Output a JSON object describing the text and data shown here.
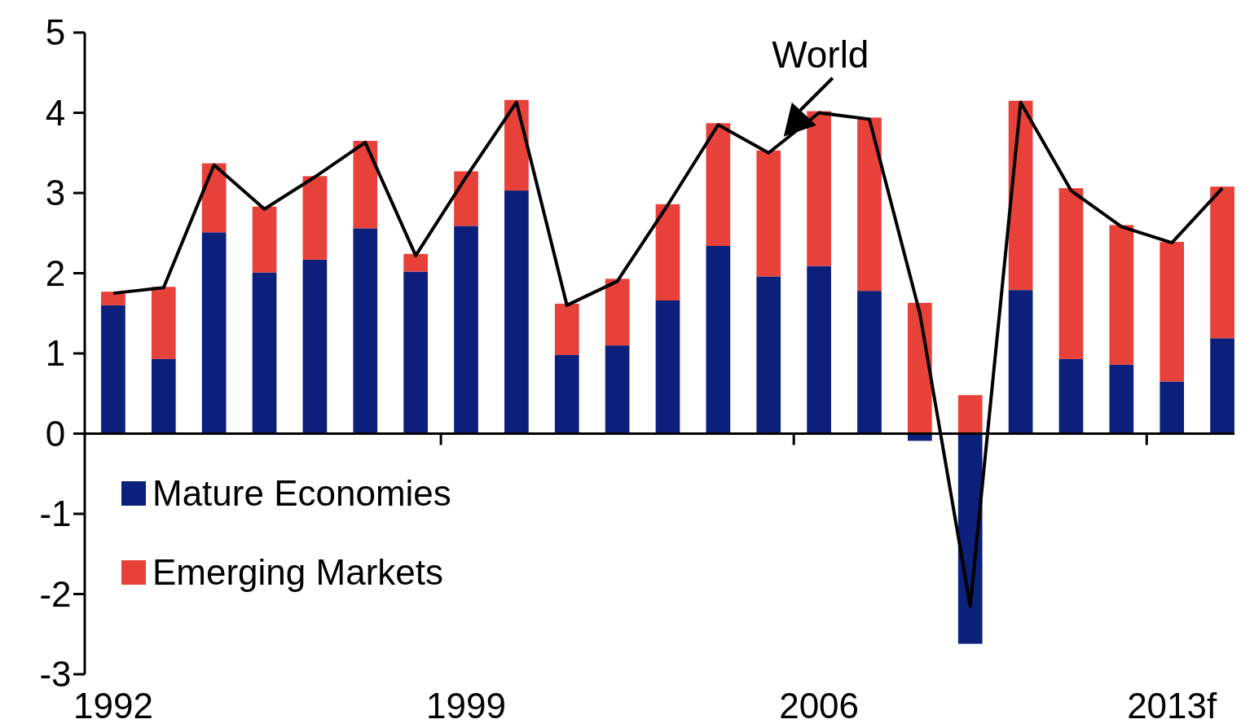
{
  "chart_data": {
    "type": "bar",
    "stacked": true,
    "categories": [
      "1992",
      null,
      null,
      null,
      null,
      null,
      null,
      "1999",
      null,
      null,
      null,
      null,
      null,
      null,
      "2006",
      null,
      null,
      null,
      null,
      null,
      null,
      "2013f",
      null
    ],
    "series": [
      {
        "name": "Mature Economies",
        "color": "#0c1f7a",
        "values": [
          1.6,
          0.93,
          2.51,
          2.01,
          2.17,
          2.56,
          2.02,
          2.59,
          3.03,
          0.98,
          1.1,
          1.66,
          2.34,
          1.96,
          2.09,
          1.78,
          -0.09,
          -2.62,
          1.79,
          0.93,
          0.86,
          0.65,
          1.19
        ]
      },
      {
        "name": "Emerging Markets",
        "color": "#e8413a",
        "values": [
          0.17,
          0.9,
          0.86,
          0.82,
          1.04,
          1.09,
          0.22,
          0.68,
          1.13,
          0.64,
          0.83,
          1.2,
          1.53,
          1.57,
          1.93,
          2.16,
          1.63,
          0.48,
          2.36,
          2.13,
          1.74,
          1.74,
          1.89
        ]
      },
      {
        "name": "World",
        "type": "line",
        "color": "#000000",
        "values": [
          1.75,
          1.82,
          3.35,
          2.8,
          3.2,
          3.63,
          2.22,
          3.2,
          4.13,
          1.6,
          1.9,
          2.85,
          3.85,
          3.5,
          4.0,
          3.92,
          1.5,
          -2.15,
          4.13,
          3.03,
          2.58,
          2.38,
          3.06
        ]
      }
    ],
    "ylim": [
      -3,
      5
    ],
    "yticks": [
      -3,
      -2,
      -1,
      0,
      1,
      2,
      3,
      4,
      5
    ],
    "legend": "bottom left",
    "marker": "none",
    "line_style": "solid"
  }
}
